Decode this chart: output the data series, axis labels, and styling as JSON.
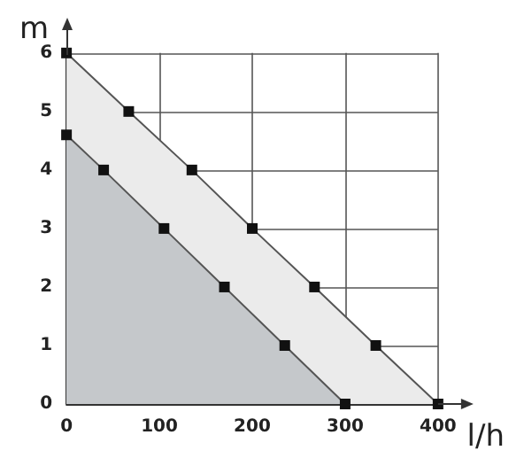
{
  "chart_data": {
    "type": "area",
    "xlabel": "l/h",
    "ylabel": "m",
    "series": [
      {
        "color": "#ebebeb",
        "x": [
          0,
          67,
          135,
          200,
          267,
          333,
          400
        ],
        "values": [
          6,
          5,
          4,
          3,
          2,
          1,
          0
        ]
      },
      {
        "color": "#c5c8cb",
        "x": [
          0,
          40,
          105,
          170,
          235,
          300
        ],
        "values": [
          4.6,
          4,
          3,
          2,
          1,
          0
        ]
      }
    ],
    "xlim": [
      0,
      400
    ],
    "xticks": [
      0,
      100,
      200,
      300,
      400
    ],
    "ylim": [
      0,
      6
    ],
    "yticks": [
      0,
      1,
      2,
      3,
      4,
      5,
      6
    ],
    "grid": true,
    "marker": "square",
    "line_style": "solid"
  }
}
